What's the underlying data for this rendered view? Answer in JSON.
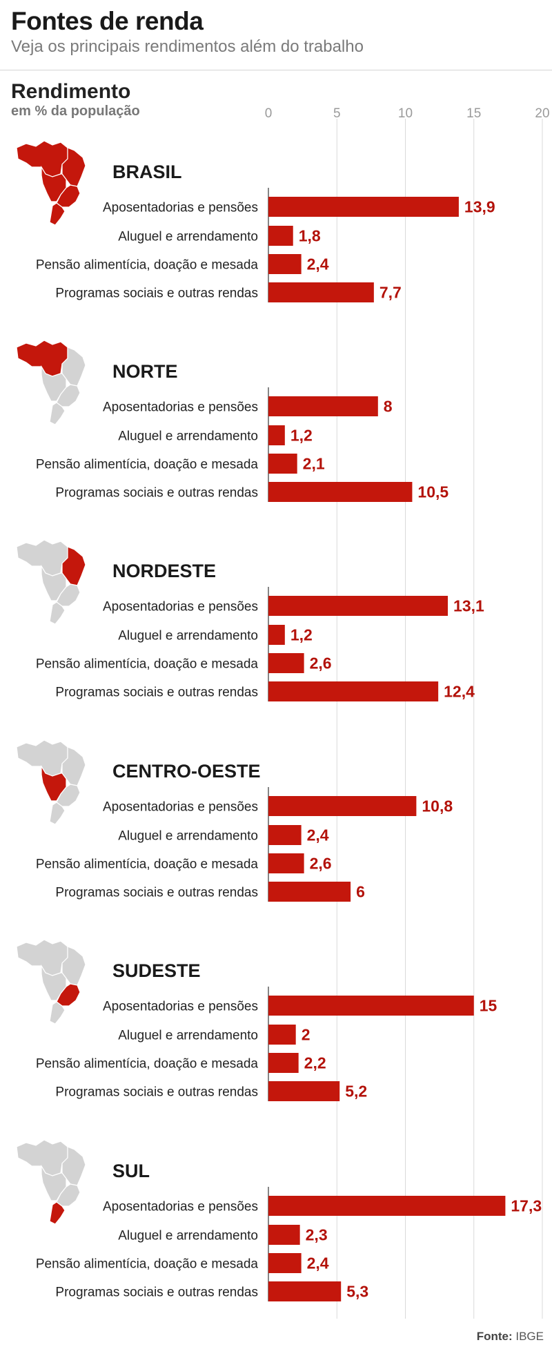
{
  "header": {
    "title": "Fontes de renda",
    "subtitle": "Veja os principais rendimentos além do trabalho"
  },
  "axis_title": {
    "main": "Rendimento",
    "sub": "em % da população"
  },
  "source": {
    "label": "Fonte:",
    "name": "IBGE"
  },
  "colors": {
    "bar": "#c4170c",
    "value_text": "#b3120a",
    "map_highlight": "#c4170c",
    "map_base": "#d3d3d3",
    "grid": "#d9d9d9"
  },
  "chart_data": {
    "type": "bar",
    "orientation": "horizontal",
    "xlim": [
      0,
      20
    ],
    "xticks": [
      "0",
      "5",
      "10",
      "15",
      "20"
    ],
    "grid": true,
    "categories": [
      "Aposentadorias e pensões",
      "Aluguel e arrendamento",
      "Pensão alimentícia, doação e mesada",
      "Programas sociais e outras rendas"
    ],
    "groups": [
      {
        "name": "BRASIL",
        "map_icon": "brazil-map-all-highlighted-icon",
        "values": [
          13.9,
          1.8,
          2.4,
          7.7
        ],
        "labels": [
          "13,9",
          "1,8",
          "2,4",
          "7,7"
        ]
      },
      {
        "name": "NORTE",
        "map_icon": "brazil-map-norte-highlighted-icon",
        "values": [
          8,
          1.2,
          2.1,
          10.5
        ],
        "labels": [
          "8",
          "1,2",
          "2,1",
          "10,5"
        ]
      },
      {
        "name": "NORDESTE",
        "map_icon": "brazil-map-nordeste-highlighted-icon",
        "values": [
          13.1,
          1.2,
          2.6,
          12.4
        ],
        "labels": [
          "13,1",
          "1,2",
          "2,6",
          "12,4"
        ]
      },
      {
        "name": "CENTRO-OESTE",
        "map_icon": "brazil-map-centro-oeste-highlighted-icon",
        "values": [
          10.8,
          2.4,
          2.6,
          6
        ],
        "labels": [
          "10,8",
          "2,4",
          "2,6",
          "6"
        ]
      },
      {
        "name": "SUDESTE",
        "map_icon": "brazil-map-sudeste-highlighted-icon",
        "values": [
          15,
          2,
          2.2,
          5.2
        ],
        "labels": [
          "15",
          "2",
          "2,2",
          "5,2"
        ]
      },
      {
        "name": "SUL",
        "map_icon": "brazil-map-sul-highlighted-icon",
        "values": [
          17.3,
          2.3,
          2.4,
          5.3
        ],
        "labels": [
          "17,3",
          "2,3",
          "2,4",
          "5,3"
        ]
      }
    ]
  }
}
